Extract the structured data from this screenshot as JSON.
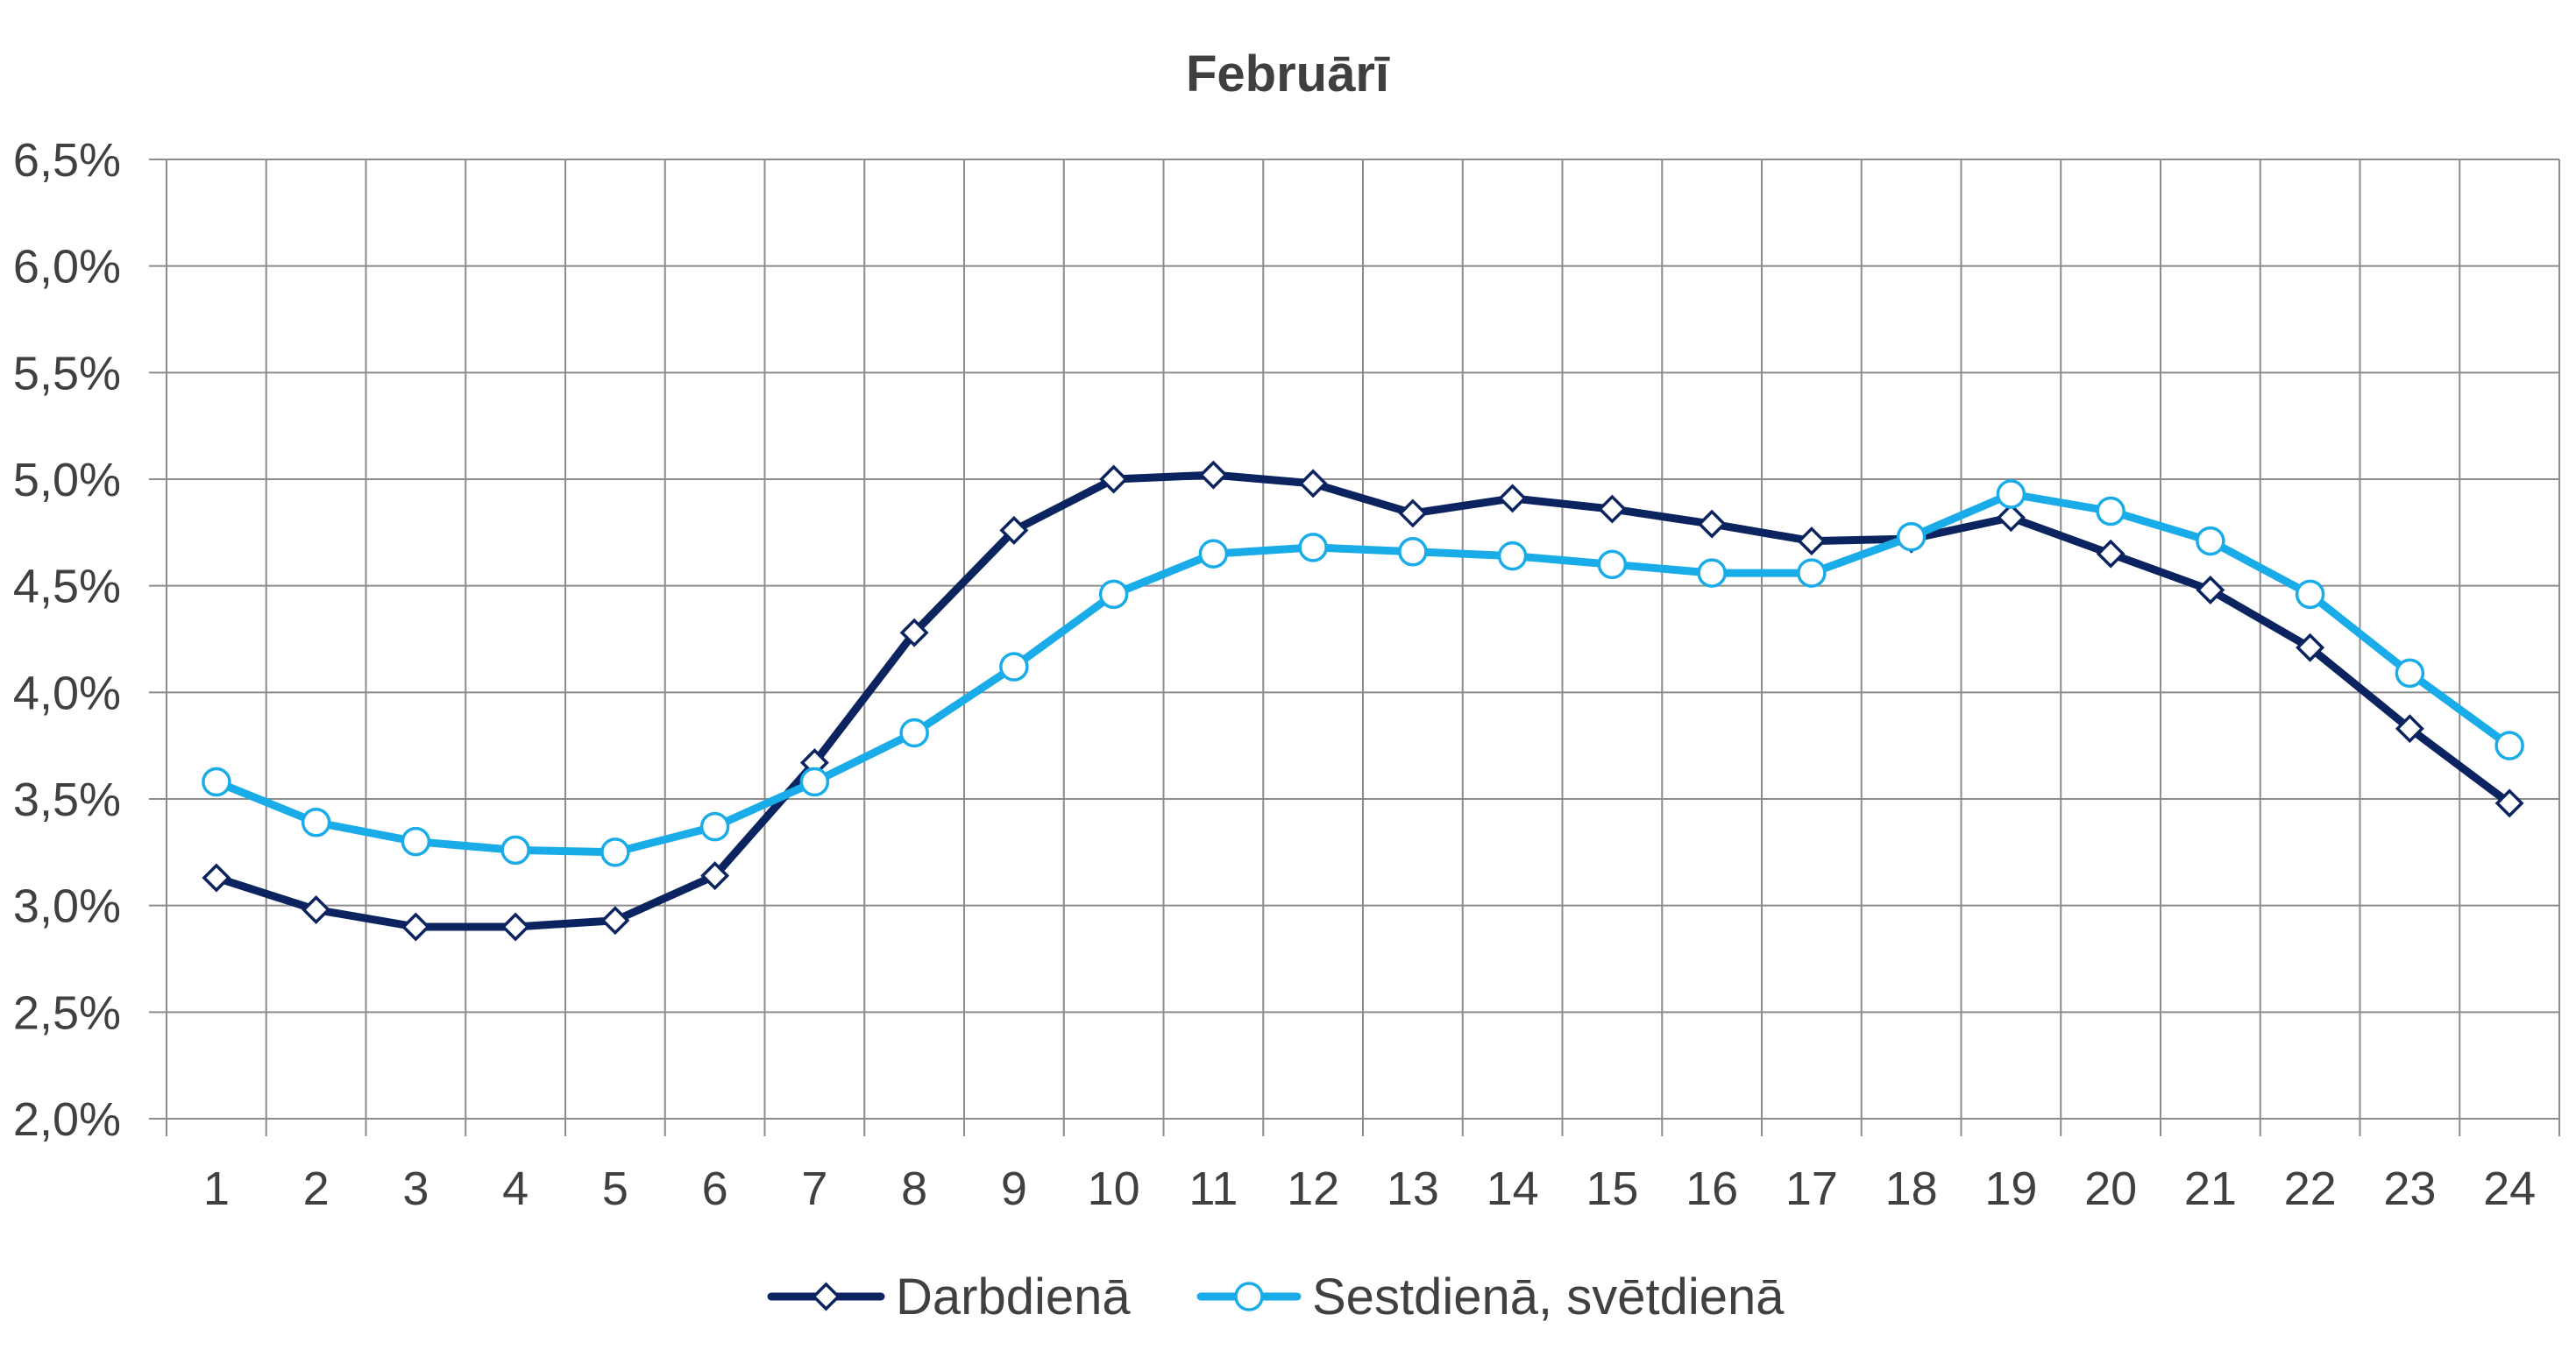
{
  "chart_data": {
    "type": "line",
    "title": "Februārī",
    "xlabel": "",
    "ylabel": "",
    "categories": [
      "1",
      "2",
      "3",
      "4",
      "5",
      "6",
      "7",
      "8",
      "9",
      "10",
      "11",
      "12",
      "13",
      "14",
      "15",
      "16",
      "17",
      "18",
      "19",
      "20",
      "21",
      "22",
      "23",
      "24"
    ],
    "ylim": [
      2.0,
      6.5
    ],
    "y_ticks": [
      2.0,
      2.5,
      3.0,
      3.5,
      4.0,
      4.5,
      5.0,
      5.5,
      6.0,
      6.5
    ],
    "y_tick_labels": [
      "2,0%",
      "2,5%",
      "3,0%",
      "3,5%",
      "4,0%",
      "4,5%",
      "5,0%",
      "5,5%",
      "6,0%",
      "6,5%"
    ],
    "grid": true,
    "legend_position": "bottom",
    "series": [
      {
        "name": "Darbdienā",
        "color": "#0b2460",
        "marker": "diamond",
        "values": [
          3.13,
          2.98,
          2.9,
          2.9,
          2.93,
          3.14,
          3.67,
          4.28,
          4.76,
          5.0,
          5.02,
          4.98,
          4.84,
          4.91,
          4.86,
          4.79,
          4.71,
          4.72,
          4.82,
          4.65,
          4.48,
          4.21,
          3.83,
          3.48
        ]
      },
      {
        "name": "Sestdienā, svētdienā",
        "color": "#19ace8",
        "marker": "circle",
        "values": [
          3.58,
          3.39,
          3.3,
          3.26,
          3.25,
          3.37,
          3.58,
          3.81,
          4.12,
          4.46,
          4.65,
          4.68,
          4.66,
          4.64,
          4.6,
          4.56,
          4.56,
          4.73,
          4.93,
          4.85,
          4.71,
          4.46,
          4.09,
          3.75
        ]
      }
    ]
  }
}
